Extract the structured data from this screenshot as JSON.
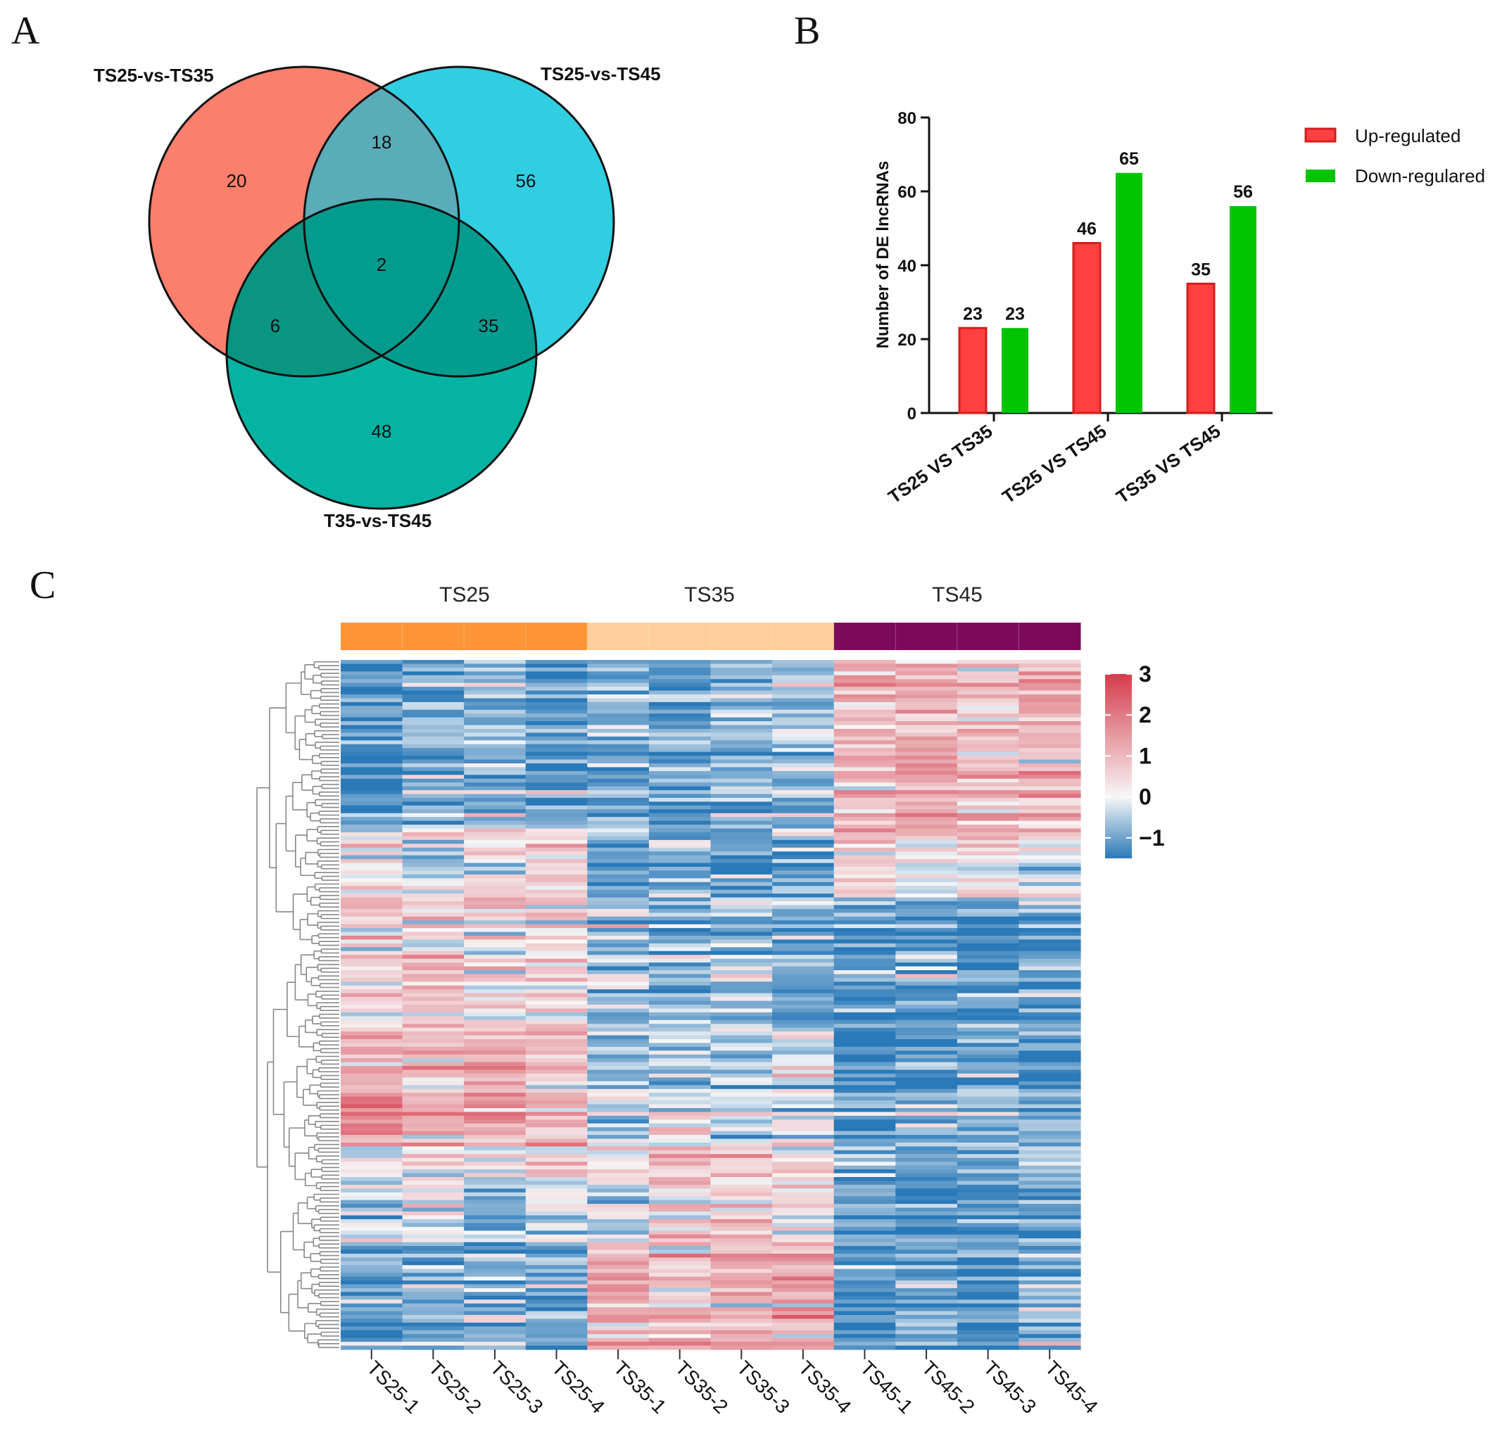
{
  "panels": {
    "A": "A",
    "B": "B",
    "C": "C"
  },
  "colors": {
    "set1": "#fa7f6c",
    "set2": "#31cde1",
    "set3": "#05b3a2",
    "int12": "#5aacb9",
    "int13": "#089582",
    "int23": "#059c90",
    "int123": "#039b8e",
    "up": "#ff4040",
    "up_edge": "#d41d1d",
    "down": "#00c400",
    "heat_low": "#2a79b8",
    "heat_mid": "#f7f7f7",
    "heat_high": "#d53c4c",
    "group_TS25": "#fc9537",
    "group_TS35": "#fecf9c",
    "group_TS45": "#7c0a5b"
  },
  "chart_data": [
    {
      "type": "venn",
      "sets": [
        "TS25-vs-TS35",
        "TS25-vs-TS45",
        "T35-vs-TS45"
      ],
      "regions": {
        "only_TS25-vs-TS35": 20,
        "only_TS25-vs-TS45": 56,
        "only_T35-vs-TS45": 48,
        "TS25-vs-TS35_and_TS25-vs-TS45": 18,
        "TS25-vs-TS35_and_T35-vs-TS45": 6,
        "TS25-vs-TS45_and_T35-vs-TS45": 35,
        "all_three": 2
      }
    },
    {
      "type": "bar",
      "title": "",
      "categories": [
        "TS25 VS TS35",
        "TS25 VS TS45",
        "TS35 VS TS45"
      ],
      "series": [
        {
          "name": "Up-regulated",
          "values": [
            23,
            46,
            35
          ]
        },
        {
          "name": "Down-regulared",
          "values": [
            23,
            65,
            56
          ]
        }
      ],
      "xlabel": "",
      "ylabel": "Number of DE lncRNAs",
      "ylim": [
        0,
        80
      ],
      "yticks": [
        0,
        20,
        40,
        60,
        80
      ],
      "legend": "top-right"
    },
    {
      "type": "heatmap",
      "groups": [
        {
          "name": "TS25",
          "samples": [
            "TS25-1",
            "TS25-2",
            "TS25-3",
            "TS25-4"
          ]
        },
        {
          "name": "TS35",
          "samples": [
            "TS35-1",
            "TS35-2",
            "TS35-3",
            "TS35-4"
          ]
        },
        {
          "name": "TS45",
          "samples": [
            "TS45-1",
            "TS45-2",
            "TS45-3",
            "TS45-4"
          ]
        }
      ],
      "colorbar": {
        "ticks": [
          3,
          2,
          1,
          0,
          -1
        ],
        "tick_labels": [
          "3",
          "2",
          "1",
          "0",
          "−1"
        ],
        "range": [
          -1.5,
          3
        ]
      },
      "row_dendrogram": true,
      "rows_approx": 180,
      "row_blocks": [
        {
          "rows": 45,
          "TS25": -1.0,
          "TS35": -0.8,
          "TS45": 0.9
        },
        {
          "rows": 17,
          "TS25": 0.0,
          "TS35": -1.0,
          "TS45": 0.1
        },
        {
          "rows": 35,
          "TS25": 0.5,
          "TS35": -0.6,
          "TS45": -1.0
        },
        {
          "rows": 30,
          "TS25": 0.9,
          "TS35": -0.4,
          "TS45": -1.0
        },
        {
          "rows": 25,
          "TS25": -0.2,
          "TS35": 0.3,
          "TS45": -1.1
        },
        {
          "rows": 28,
          "TS25": -0.8,
          "TS35": 0.8,
          "TS45": -0.9
        }
      ]
    }
  ]
}
